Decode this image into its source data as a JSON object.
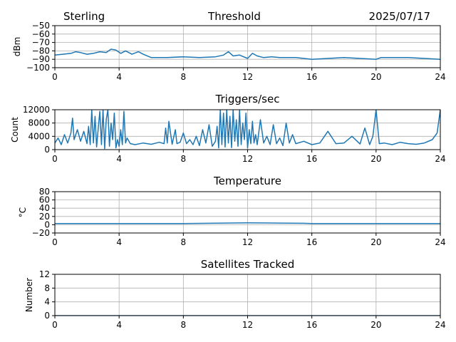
{
  "header": {
    "station": "Sterling",
    "title": "Threshold",
    "date": "2025/07/17"
  },
  "chart_data": [
    {
      "type": "line",
      "title": "",
      "xlabel": "",
      "ylabel": "dBm",
      "xlim": [
        0,
        24
      ],
      "ylim": [
        -100,
        -50
      ],
      "xticks": [
        0,
        4,
        8,
        12,
        16,
        20,
        24
      ],
      "yticks": [
        -100,
        -90,
        -80,
        -70,
        -60,
        -50
      ],
      "ytick_labels": [
        "−100",
        "−90",
        "−80",
        "−70",
        "−60",
        "−50"
      ],
      "grid": true,
      "series": [
        {
          "color": "#1f77b4",
          "x": [
            0,
            0.5,
            1,
            1.3,
            1.6,
            2,
            2.4,
            2.8,
            3.2,
            3.5,
            3.8,
            4.1,
            4.4,
            4.8,
            5.2,
            5.5,
            6,
            7,
            8,
            9,
            10,
            10.5,
            10.8,
            11.1,
            11.5,
            12,
            12.3,
            12.6,
            13,
            13.5,
            14,
            15,
            15.5,
            16,
            17,
            18,
            19,
            20,
            20.3,
            21,
            22,
            23,
            24
          ],
          "y": [
            -85,
            -84,
            -83,
            -81,
            -82,
            -84,
            -83,
            -81,
            -82,
            -78,
            -79,
            -83,
            -80,
            -84,
            -81,
            -84,
            -88,
            -88,
            -87,
            -88,
            -87,
            -85,
            -81,
            -86,
            -85,
            -89,
            -83,
            -86,
            -88,
            -87,
            -88,
            -88,
            -89,
            -90,
            -89,
            -88,
            -89,
            -90,
            -88,
            -88,
            -88,
            -89,
            -90
          ]
        }
      ]
    },
    {
      "type": "line",
      "title": "Triggers/sec",
      "xlabel": "",
      "ylabel": "Count",
      "xlim": [
        0,
        24
      ],
      "ylim": [
        0,
        12000
      ],
      "xticks": [
        0,
        4,
        8,
        12,
        16,
        20,
        24
      ],
      "yticks": [
        0,
        4000,
        8000,
        12000
      ],
      "ytick_labels": [
        "0",
        "4000",
        "8000",
        "12000"
      ],
      "grid": true,
      "series": [
        {
          "color": "#1f77b4",
          "x": [
            0,
            0.2,
            0.4,
            0.6,
            0.8,
            1.0,
            1.1,
            1.2,
            1.4,
            1.6,
            1.8,
            2.0,
            2.1,
            2.2,
            2.3,
            2.4,
            2.5,
            2.6,
            2.7,
            2.8,
            2.9,
            3.0,
            3.1,
            3.2,
            3.3,
            3.4,
            3.5,
            3.6,
            3.7,
            3.8,
            3.9,
            4.0,
            4.1,
            4.2,
            4.3,
            4.4,
            4.5,
            4.7,
            5.0,
            5.5,
            6.0,
            6.5,
            6.8,
            6.9,
            7.0,
            7.1,
            7.3,
            7.5,
            7.6,
            7.8,
            8.0,
            8.2,
            8.4,
            8.6,
            8.8,
            9.0,
            9.2,
            9.4,
            9.6,
            9.8,
            10.0,
            10.1,
            10.2,
            10.3,
            10.4,
            10.5,
            10.6,
            10.7,
            10.8,
            10.9,
            11.0,
            11.1,
            11.2,
            11.3,
            11.4,
            11.5,
            11.6,
            11.7,
            11.8,
            11.9,
            12.0,
            12.1,
            12.2,
            12.3,
            12.4,
            12.5,
            12.6,
            12.8,
            13.0,
            13.2,
            13.4,
            13.6,
            13.8,
            14.0,
            14.2,
            14.4,
            14.6,
            14.8,
            15.0,
            15.5,
            16.0,
            16.5,
            17.0,
            17.5,
            18.0,
            18.5,
            19.0,
            19.3,
            19.6,
            19.8,
            20.0,
            20.2,
            20.5,
            21.0,
            21.5,
            22.0,
            22.5,
            23.0,
            23.5,
            23.8,
            24.0
          ],
          "y": [
            2000,
            3500,
            1500,
            4500,
            2000,
            5000,
            9500,
            3000,
            6000,
            2500,
            5500,
            1800,
            7000,
            1500,
            12000,
            2000,
            10000,
            800,
            6500,
            11500,
            1500,
            12000,
            300,
            9000,
            12000,
            1000,
            8000,
            3000,
            11000,
            500,
            3000,
            1000,
            6000,
            1500,
            11500,
            2000,
            3500,
            1800,
            1500,
            2000,
            1600,
            2200,
            1800,
            6500,
            2000,
            8500,
            1600,
            6000,
            1800,
            2200,
            5000,
            1800,
            3000,
            1500,
            4000,
            1200,
            6000,
            2000,
            7500,
            1000,
            2500,
            7000,
            500,
            12000,
            1500,
            11000,
            800,
            12000,
            2000,
            10000,
            600,
            12000,
            2500,
            9000,
            1000,
            12000,
            1500,
            8000,
            3000,
            11000,
            500,
            6000,
            1800,
            8500,
            2000,
            4500,
            1500,
            9000,
            2000,
            4000,
            1500,
            7500,
            1800,
            3500,
            1200,
            8000,
            2000,
            4500,
            1800,
            2500,
            1500,
            2000,
            5500,
            1800,
            2000,
            4000,
            1700,
            6500,
            1500,
            4000,
            12000,
            1800,
            2000,
            1500,
            2200,
            1800,
            1600,
            2000,
            3000,
            5000,
            12000
          ]
        }
      ]
    },
    {
      "type": "line",
      "title": "Temperature",
      "xlabel": "",
      "ylabel": "°C",
      "xlim": [
        0,
        24
      ],
      "ylim": [
        -20,
        80
      ],
      "xticks": [
        0,
        4,
        8,
        12,
        16,
        20,
        24
      ],
      "yticks": [
        -20,
        0,
        20,
        40,
        60,
        80
      ],
      "ytick_labels": [
        "−20",
        "0",
        "20",
        "40",
        "60",
        "80"
      ],
      "grid": true,
      "series": [
        {
          "color": "#1f77b4",
          "x": [
            0,
            4,
            8,
            10.5,
            12,
            14,
            15.5,
            16,
            20,
            24
          ],
          "y": [
            3,
            3,
            3,
            4,
            4.5,
            4,
            3.5,
            3,
            3,
            3
          ]
        }
      ]
    },
    {
      "type": "line",
      "title": "Satellites Tracked",
      "xlabel": "",
      "ylabel": "Number",
      "xlim": [
        0,
        24
      ],
      "ylim": [
        0,
        12
      ],
      "xticks": [
        0,
        4,
        8,
        12,
        16,
        20,
        24
      ],
      "yticks": [
        0,
        4,
        8,
        12
      ],
      "ytick_labels": [
        "0",
        "4",
        "8",
        "12"
      ],
      "grid": true,
      "series": [
        {
          "color": "#1f77b4",
          "x": [
            0,
            24
          ],
          "y": [
            0,
            0
          ]
        }
      ]
    }
  ]
}
